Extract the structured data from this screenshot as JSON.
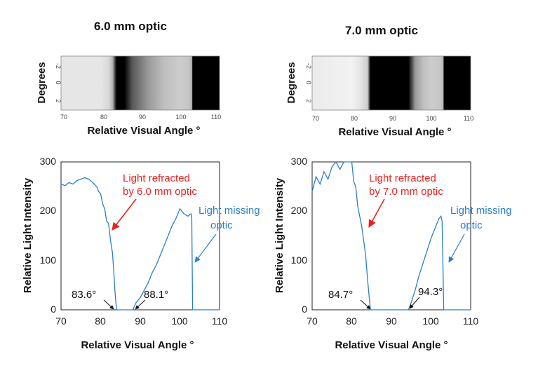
{
  "colors": {
    "line": "#2a7fc8",
    "refracted": "#e8211f",
    "missing": "#2a7fc8",
    "axis": "#222222"
  },
  "chart_data": [
    {
      "type": "heatmap",
      "title": "6.0 mm optic",
      "xlabel": "Relative Visual Angle °",
      "ylabel": "Degrees",
      "xlim": [
        70,
        110
      ],
      "xticks": [
        "70",
        "80",
        "90",
        "100",
        "110"
      ],
      "yticks": [
        "-2",
        "0",
        "2"
      ],
      "profile": {
        "x": [
          70,
          80,
          82,
          83,
          84,
          86,
          88,
          92,
          96,
          100,
          102,
          103,
          103.2,
          110
        ],
        "v": [
          0.9,
          0.9,
          0.85,
          0.7,
          0.0,
          0.0,
          0.35,
          0.6,
          0.75,
          0.8,
          0.78,
          0.72,
          0.0,
          0.0
        ]
      }
    },
    {
      "type": "heatmap",
      "title": "7.0 mm optic",
      "xlabel": "Relative Visual Angle °",
      "ylabel": "Degrees",
      "xlim": [
        70,
        110
      ],
      "xticks": [
        "70",
        "80",
        "90",
        "100",
        "110"
      ],
      "yticks": [
        "-2",
        "0",
        "2"
      ],
      "profile": {
        "x": [
          70,
          80,
          82,
          84,
          84.7,
          85,
          94.3,
          96,
          98,
          100,
          102,
          103,
          103.3,
          110
        ],
        "v": [
          0.92,
          0.95,
          0.9,
          0.8,
          0.0,
          0.0,
          0.0,
          0.6,
          0.75,
          0.8,
          0.78,
          0.75,
          0.0,
          0.0
        ]
      }
    },
    {
      "type": "line",
      "xlabel": "Relative Visual Angle °",
      "ylabel": "Relative Light Intensity",
      "xlim": [
        70,
        110
      ],
      "ylim": [
        0,
        300
      ],
      "xticks": [
        "70",
        "80",
        "90",
        "100",
        "110"
      ],
      "yticks": [
        "0",
        "100",
        "200",
        "300"
      ],
      "series": [
        {
          "x": [
            70,
            71,
            72,
            73,
            74,
            75,
            76,
            77,
            78,
            79,
            79.5,
            80,
            80.5,
            81,
            81.5,
            82,
            82.5,
            83,
            83.3,
            83.6,
            84,
            86,
            88.1,
            89,
            90,
            91,
            92,
            93,
            94,
            95,
            96,
            97,
            98,
            99,
            100,
            101,
            102,
            102.8,
            103,
            103.2,
            104,
            110
          ],
          "y": [
            255,
            252,
            258,
            255,
            262,
            265,
            268,
            265,
            258,
            250,
            240,
            235,
            215,
            205,
            180,
            175,
            140,
            115,
            80,
            40,
            0,
            0,
            0,
            15,
            25,
            40,
            55,
            75,
            90,
            110,
            130,
            150,
            170,
            185,
            205,
            195,
            190,
            195,
            185,
            0,
            0,
            0
          ]
        }
      ],
      "annotations": [
        {
          "text": "Light refracted",
          "color": "red"
        },
        {
          "text": "by 6.0 mm optic",
          "color": "red"
        },
        {
          "text": "Light missing",
          "color": "blue"
        },
        {
          "text": "optic",
          "color": "blue"
        },
        {
          "text": "83.6°",
          "color": "black"
        },
        {
          "text": "88.1°",
          "color": "black"
        }
      ]
    },
    {
      "type": "line",
      "xlabel": "Relative Visual Angle °",
      "ylabel": "Relative Light Intensity",
      "xlim": [
        70,
        110
      ],
      "ylim": [
        0,
        300
      ],
      "xticks": [
        "70",
        "80",
        "90",
        "100",
        "110"
      ],
      "yticks": [
        "0",
        "100",
        "200",
        "300"
      ],
      "series": [
        {
          "x": [
            70,
            71,
            72,
            73,
            74,
            75,
            76,
            77,
            78,
            79,
            80,
            80.5,
            81,
            81.5,
            82,
            82.5,
            83,
            83.5,
            84,
            84.7,
            85,
            90,
            94.3,
            95,
            96,
            97,
            98,
            99,
            100,
            101,
            102,
            102.5,
            102.8,
            103.2,
            104,
            110
          ],
          "y": [
            240,
            270,
            255,
            280,
            265,
            290,
            300,
            285,
            300,
            300,
            300,
            260,
            250,
            210,
            190,
            170,
            140,
            110,
            60,
            0,
            0,
            0,
            0,
            15,
            40,
            70,
            95,
            120,
            145,
            165,
            185,
            190,
            180,
            0,
            0,
            0
          ]
        }
      ],
      "annotations": [
        {
          "text": "Light refracted",
          "color": "red"
        },
        {
          "text": "by 7.0 mm optic",
          "color": "red"
        },
        {
          "text": "Light missing",
          "color": "blue"
        },
        {
          "text": "optic",
          "color": "blue"
        },
        {
          "text": "84.7°",
          "color": "black"
        },
        {
          "text": "94.3°",
          "color": "black"
        }
      ]
    }
  ]
}
